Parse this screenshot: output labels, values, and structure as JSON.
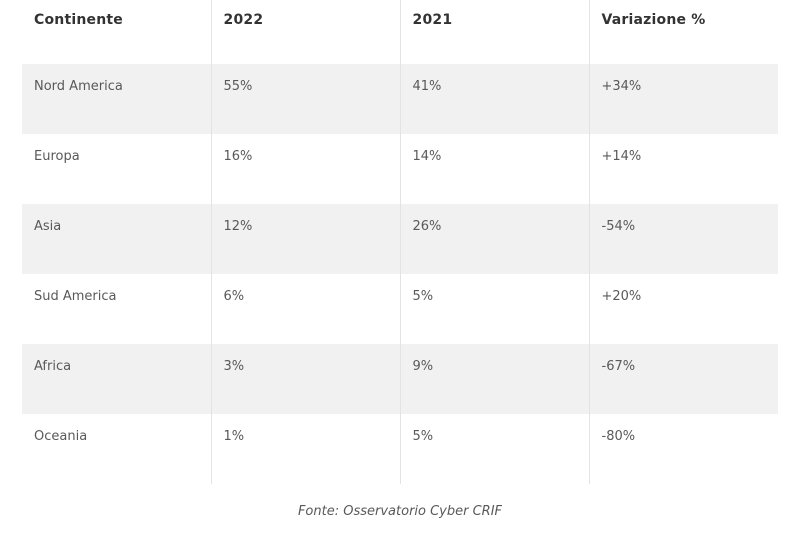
{
  "colors": {
    "row-stripe": "#f1f1f1",
    "border-color": "#e3e3e3",
    "header-text": "#333333",
    "cell-text": "#58595b",
    "page-bg": "#ffffff"
  },
  "chart_data": {
    "type": "table",
    "columns": [
      "Continente",
      "2022",
      "2021",
      "Variazione %"
    ],
    "rows": [
      [
        "Nord America",
        "55%",
        "41%",
        "+34%"
      ],
      [
        "Europa",
        "16%",
        "14%",
        "+14%"
      ],
      [
        "Asia",
        "12%",
        "26%",
        "-54%"
      ],
      [
        "Sud America",
        "6%",
        "5%",
        "+20%"
      ],
      [
        "Africa",
        "3%",
        "9%",
        "-67%"
      ],
      [
        "Oceania",
        "1%",
        "5%",
        "-80%"
      ]
    ],
    "caption": "Fonte: Osservatorio Cyber CRIF",
    "layout": {
      "grid": "vertical-column-separators-only",
      "stripe_pattern": "odd-rows-gray",
      "caption_position": "bottom-center"
    }
  }
}
